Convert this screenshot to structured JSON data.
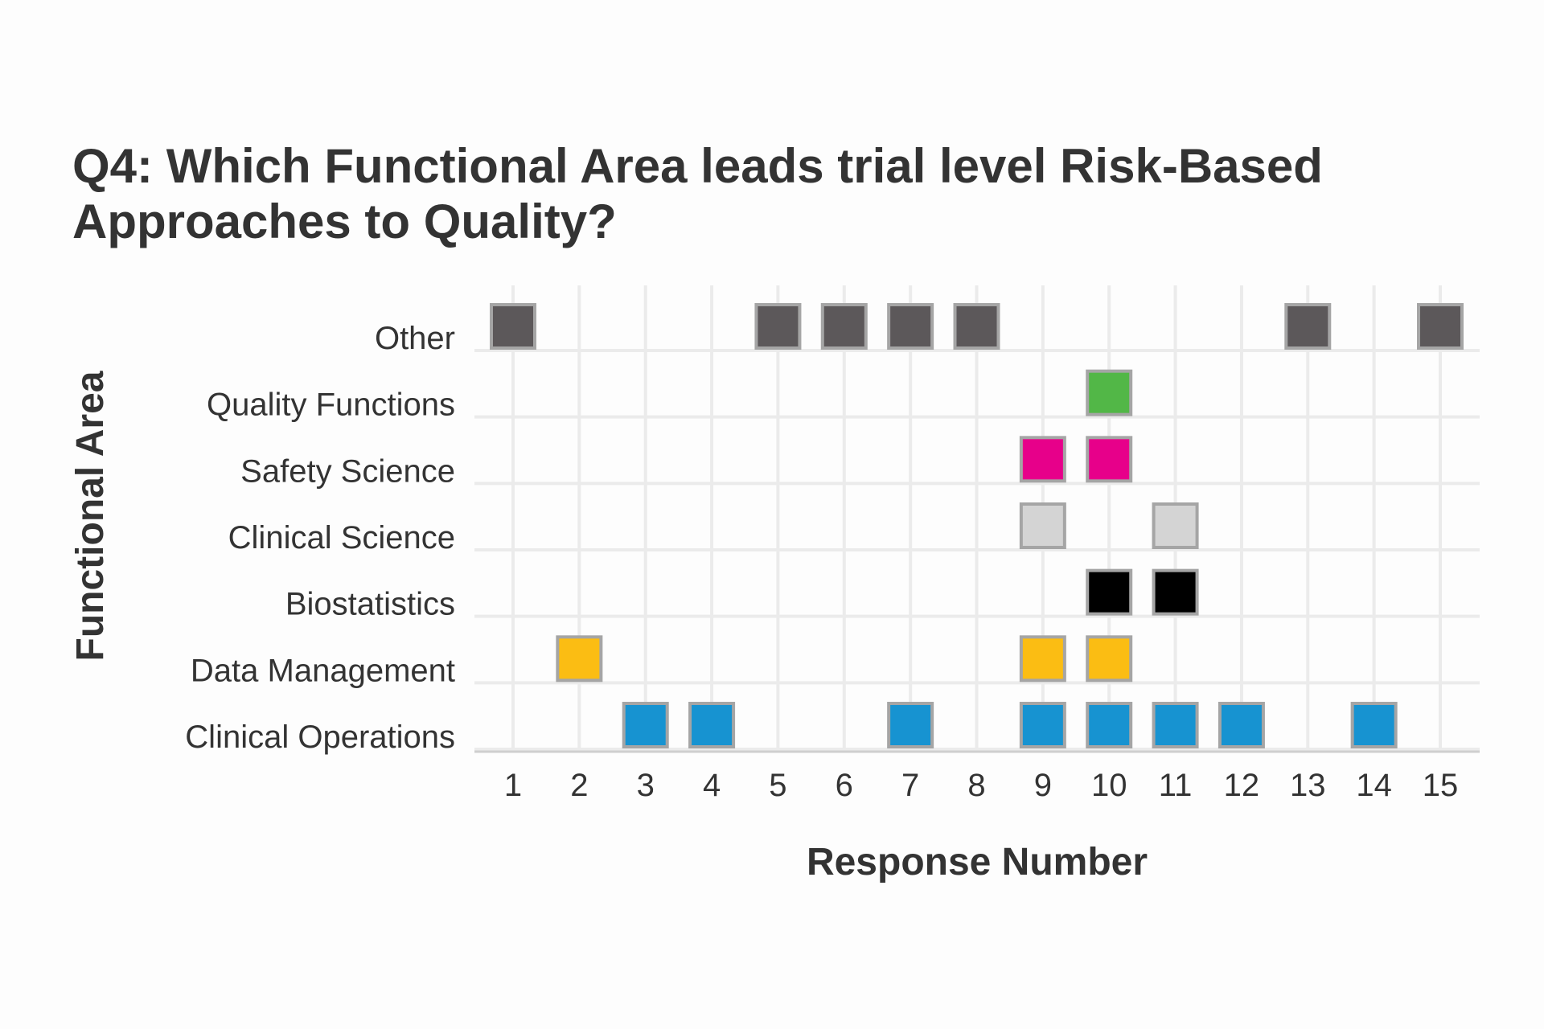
{
  "chart_data": {
    "type": "scatter",
    "title_lines": [
      "Q4: Which Functional Area leads trial level Risk-Based",
      "Approaches to Quality?"
    ],
    "xlabel": "Response Number",
    "ylabel": "Functional Area",
    "x_ticks": [
      "1",
      "2",
      "3",
      "4",
      "5",
      "6",
      "7",
      "8",
      "9",
      "10",
      "11",
      "12",
      "13",
      "14",
      "15"
    ],
    "categories": [
      "Clinical Operations",
      "Data Management",
      "Biostatistics",
      "Clinical Science",
      "Safety Science",
      "Quality Functions",
      "Other"
    ],
    "xlim": [
      1,
      15
    ],
    "grid": true,
    "series": [
      {
        "name": "Clinical Operations",
        "color": "#1793d1",
        "x": [
          3,
          4,
          7,
          9,
          10,
          11,
          12,
          14
        ]
      },
      {
        "name": "Data Management",
        "color": "#fbbd13",
        "x": [
          2,
          9,
          10
        ]
      },
      {
        "name": "Biostatistics",
        "color": "#000000",
        "x": [
          10,
          11
        ]
      },
      {
        "name": "Clinical Science",
        "color": "#d4d4d4",
        "x": [
          9,
          11
        ]
      },
      {
        "name": "Safety Science",
        "color": "#e7008a",
        "x": [
          9,
          10
        ]
      },
      {
        "name": "Quality Functions",
        "color": "#52b747",
        "x": [
          10
        ]
      },
      {
        "name": "Other",
        "color": "#5c585a",
        "x": [
          1,
          5,
          6,
          7,
          8,
          13,
          15
        ]
      }
    ],
    "marker_border_color": "#a5a5a5",
    "grid_color": "#ebebeb"
  }
}
